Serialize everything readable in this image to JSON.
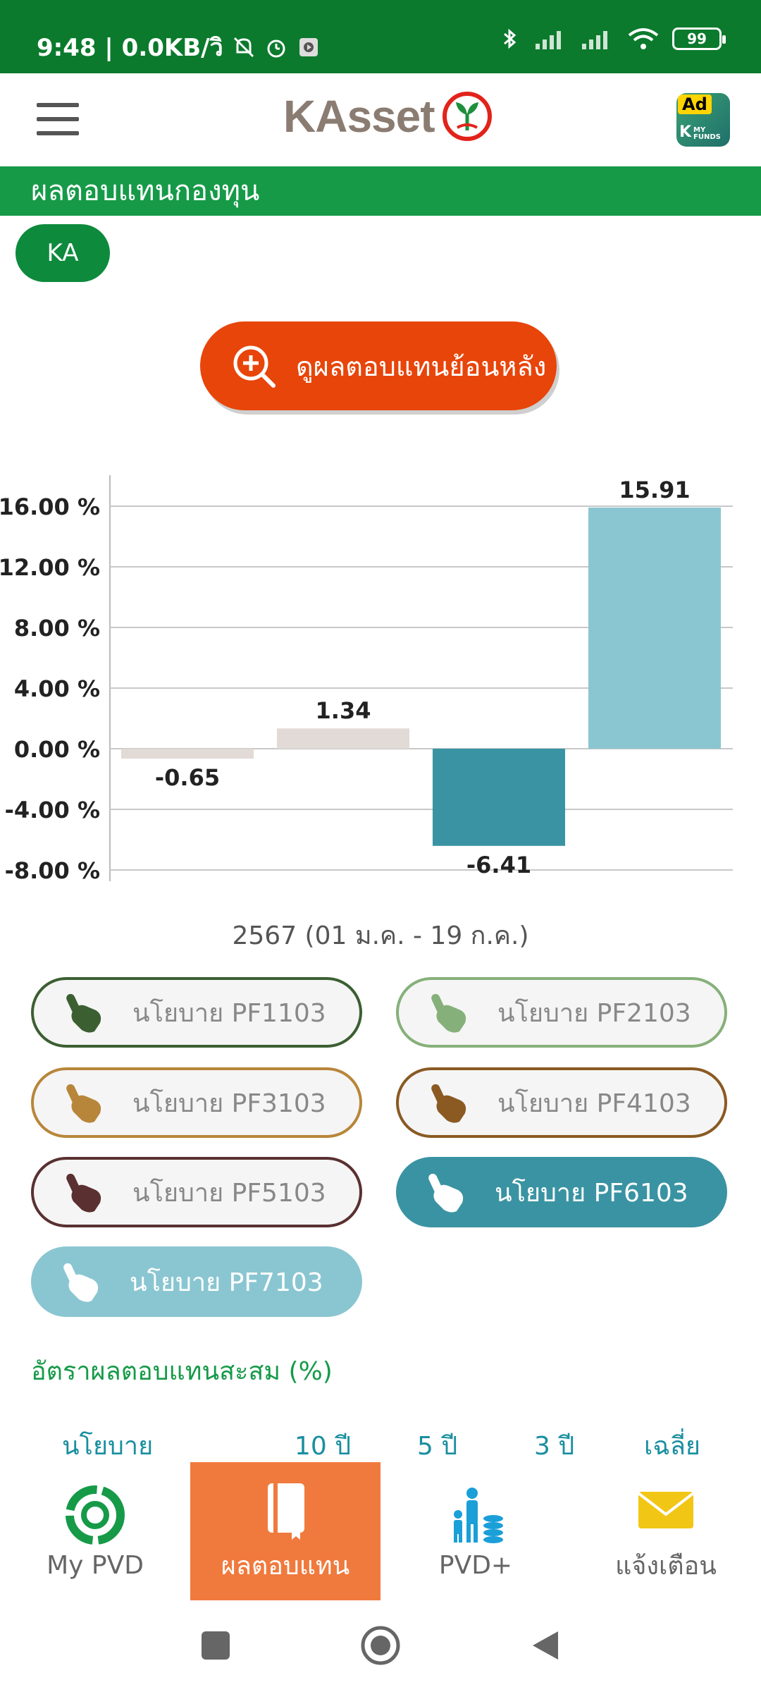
{
  "status": {
    "time_net": "9:48 | 0.0KB/วิ",
    "battery": "99"
  },
  "header": {
    "logo_text": "KAsset",
    "ad_badge": "Ad",
    "ad_app_k": "K",
    "ad_app_text": "MY FUNDS"
  },
  "section_title": "ผลตอบแทนกองทุน",
  "fund_chip": "KA",
  "history_button": "ดูผลตอบแทนย้อนหลัง",
  "chart_data": {
    "type": "bar",
    "categories": [
      "PF1103",
      "PF2103",
      "PF6103",
      "PF7103"
    ],
    "values": [
      -0.65,
      1.34,
      -6.41,
      15.91
    ],
    "value_labels": [
      "-0.65",
      "1.34",
      "-6.41",
      "15.91"
    ],
    "colors": [
      "#e2dad6",
      "#e2dad6",
      "#3a93a2",
      "#8ac6d1"
    ],
    "ylim": [
      -8,
      18
    ],
    "yticks": [
      16,
      12,
      8,
      4,
      0,
      -4,
      -8
    ],
    "ytick_labels": [
      "16.00 %",
      "12.00 %",
      "8.00 %",
      "4.00 %",
      "0.00 %",
      "-4.00 %",
      "-8.00 %"
    ],
    "grid": true,
    "period_label": "2567 (01 ม.ค. - 19 ก.ค.)"
  },
  "policies": [
    {
      "label": "นโยบาย PF1103",
      "color": "#3c5f32",
      "active": false
    },
    {
      "label": "นโยบาย PF2103",
      "color": "#86b07a",
      "active": false
    },
    {
      "label": "นโยบาย PF3103",
      "color": "#b8863a",
      "active": false
    },
    {
      "label": "นโยบาย PF4103",
      "color": "#8a5a22",
      "active": false
    },
    {
      "label": "นโยบาย PF5103",
      "color": "#5a3030",
      "active": false
    },
    {
      "label": "นโยบาย PF6103",
      "color": "#3a93a2",
      "active": true
    },
    {
      "label": "นโยบาย PF7103",
      "color": "#8ac6d1",
      "active": true
    }
  ],
  "cumulative_title": "อัตราผลตอบแทนสะสม (%)",
  "table_headers": [
    "นโยบาย",
    "10 ปี",
    "5 ปี",
    "3 ปี",
    "เฉลี่ย"
  ],
  "bottom_nav": [
    {
      "label": "My PVD",
      "icon": "pvd-ring-icon"
    },
    {
      "label": "ผลตอบแทน",
      "icon": "book-icon"
    },
    {
      "label": "PVD+",
      "icon": "family-coins-icon"
    },
    {
      "label": "แจ้งเตือน",
      "icon": "mail-icon"
    }
  ]
}
